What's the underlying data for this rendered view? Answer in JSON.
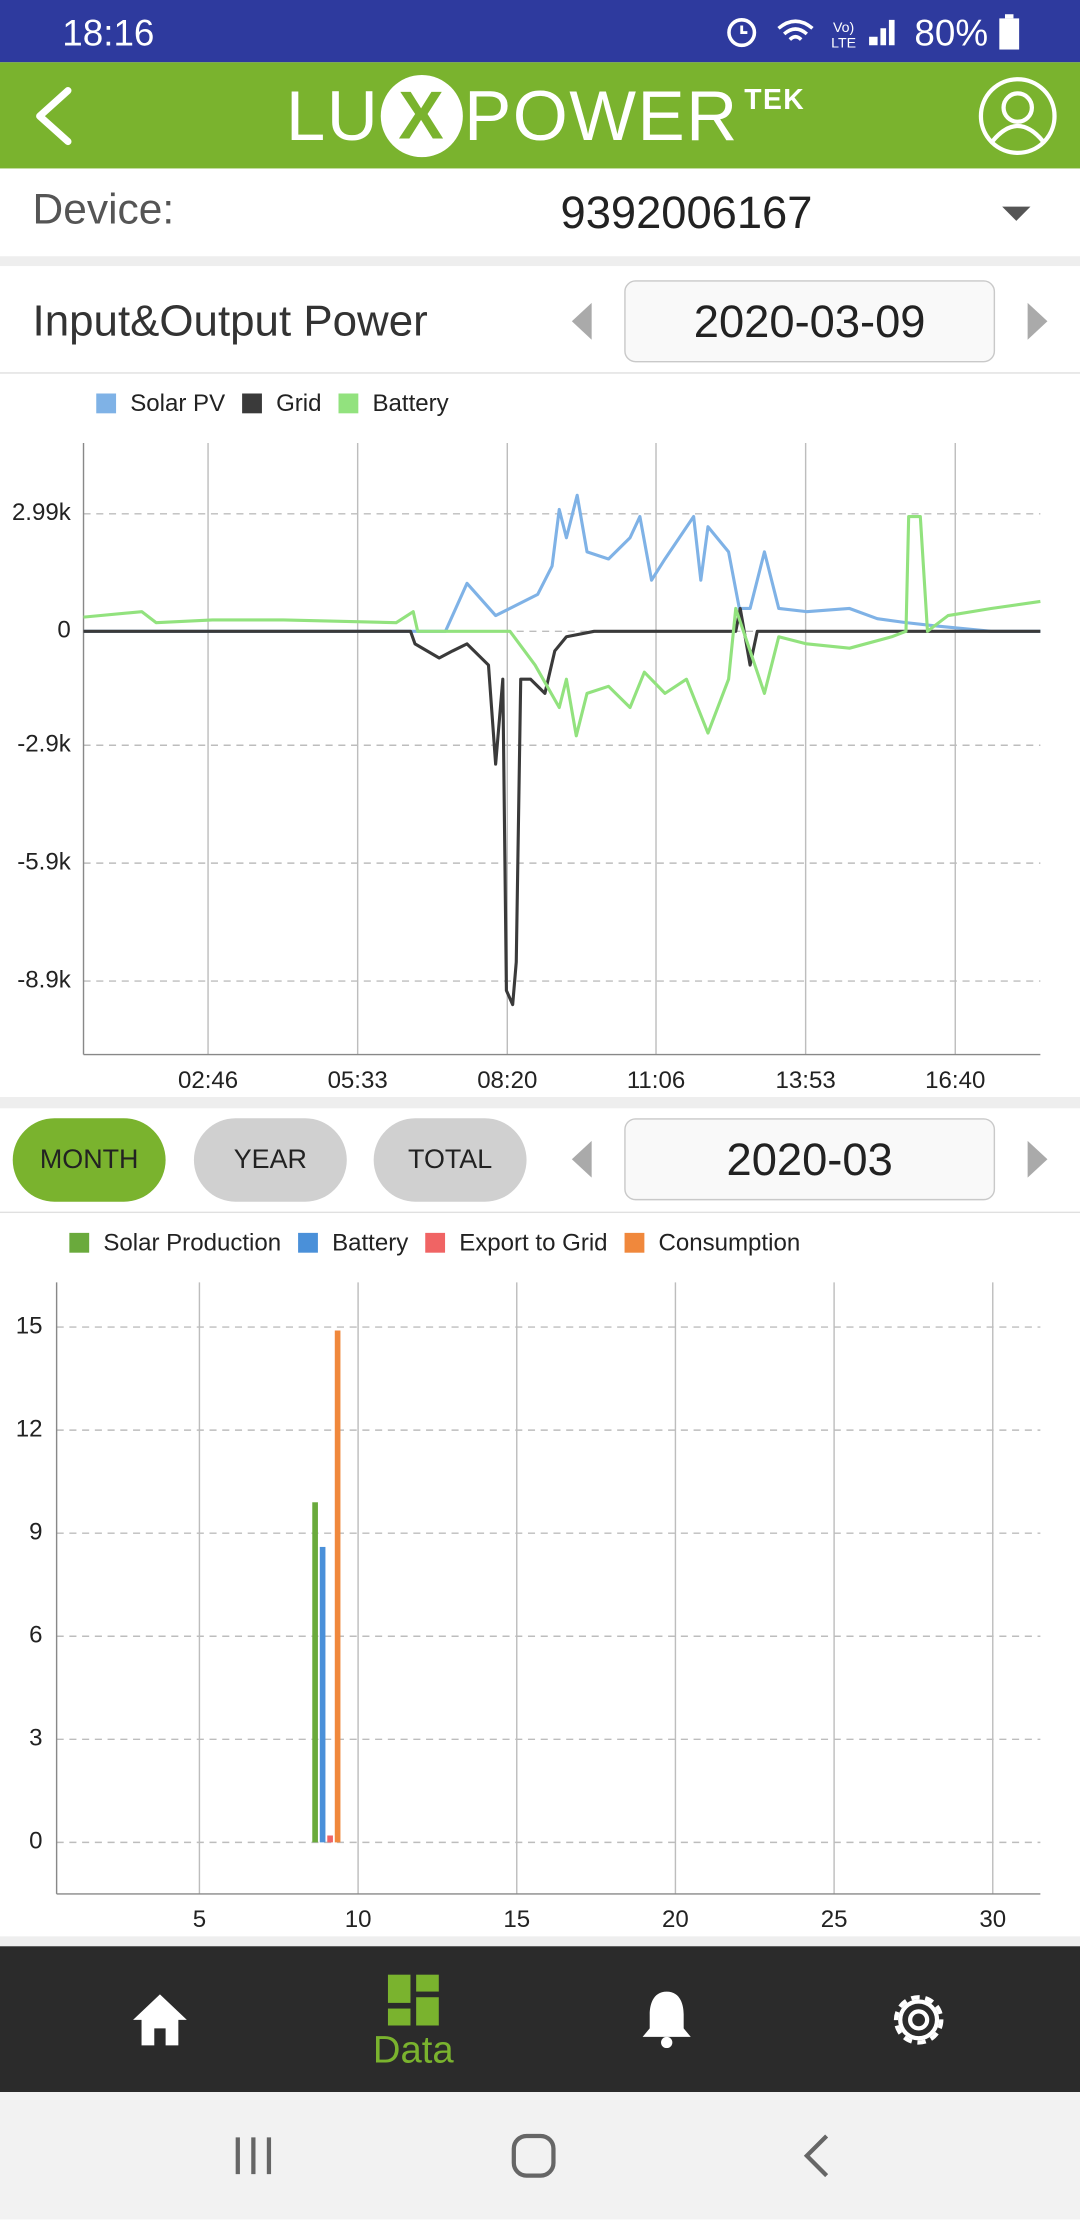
{
  "status_bar": {
    "time": "18:16",
    "battery": "80%"
  },
  "header": {
    "logo_left": "LU",
    "logo_mark": "X",
    "logo_right": "POWER",
    "logo_sup": "TEK"
  },
  "device": {
    "label": "Device:",
    "value": "9392006167"
  },
  "power_section": {
    "title": "Input&Output Power",
    "date": "2020-03-09"
  },
  "period_tabs": [
    "MONTH",
    "YEAR",
    "TOTAL"
  ],
  "period_date": "2020-03",
  "bottom_nav": {
    "active_label": "Data"
  },
  "chart_data": [
    {
      "type": "line",
      "xlim": [
        27,
        1095
      ],
      "xticks": [
        {
          "value": 166,
          "label": "02:46"
        },
        {
          "value": 333,
          "label": "05:33"
        },
        {
          "value": 500,
          "label": "08:20"
        },
        {
          "value": 666,
          "label": "11:06"
        },
        {
          "value": 833,
          "label": "13:53"
        },
        {
          "value": 1000,
          "label": "16:40"
        }
      ],
      "ylim": [
        -10770,
        4790
      ],
      "yticks": [
        {
          "value": 2990,
          "label": "2.99k"
        },
        0,
        {
          "value": -2900,
          "label": "-2.9k"
        },
        {
          "value": -5900,
          "label": "-5.9k"
        },
        {
          "value": -8900,
          "label": "-8.9k"
        }
      ],
      "grid": true,
      "series": [
        {
          "name": "Solar PV",
          "color": "#7fb2e6",
          "x": [
            27,
            431,
            455,
            487,
            534,
            550,
            558,
            566,
            578,
            589,
            613,
            637,
            648,
            661,
            676,
            692,
            708,
            716,
            724,
            747,
            759,
            771,
            787,
            803,
            834,
            882,
            913,
            945,
            977,
            1040,
            1095
          ],
          "values": [
            0,
            0,
            1220,
            400,
            940,
            1660,
            3100,
            2380,
            3460,
            2020,
            1840,
            2380,
            2920,
            1300,
            1840,
            2380,
            2920,
            1300,
            2660,
            2020,
            580,
            580,
            2020,
            580,
            500,
            580,
            320,
            220,
            140,
            0,
            0
          ]
        },
        {
          "name": "Grid",
          "color": "#3a3a3a",
          "x": [
            27,
            392,
            397,
            424,
            439,
            455,
            479,
            487,
            495,
            499,
            506,
            510,
            515,
            526,
            542,
            553,
            566,
            597,
            755,
            760,
            771,
            779,
            1095
          ],
          "values": [
            0,
            0,
            -320,
            -680,
            -500,
            -320,
            -860,
            -3380,
            -1220,
            -9140,
            -9500,
            -8420,
            -1220,
            -1220,
            -1580,
            -500,
            -140,
            0,
            0,
            580,
            -860,
            0,
            0
          ]
        },
        {
          "name": "Battery",
          "color": "#92e27e",
          "x": [
            27,
            92,
            108,
            171,
            250,
            376,
            395,
            400,
            503,
            531,
            558,
            566,
            577,
            589,
            613,
            637,
            653,
            676,
            700,
            724,
            747,
            755,
            771,
            787,
            803,
            834,
            882,
            929,
            945,
            948,
            961,
            969,
            992,
            1040,
            1095
          ],
          "values": [
            360,
            500,
            220,
            290,
            290,
            220,
            500,
            0,
            0,
            -860,
            -1940,
            -1220,
            -2660,
            -1580,
            -1400,
            -1940,
            -1040,
            -1580,
            -1220,
            -2590,
            -1220,
            580,
            -500,
            -1580,
            -140,
            -320,
            -430,
            -140,
            0,
            2920,
            2920,
            0,
            400,
            580,
            760
          ]
        }
      ]
    },
    {
      "type": "bar",
      "x": [
        9
      ],
      "xlim": [
        0.5,
        31.5
      ],
      "xticks": [
        5,
        10,
        15,
        20,
        25,
        30
      ],
      "ylim": [
        -1.5,
        16.3
      ],
      "yticks": [
        15,
        12,
        9,
        6,
        3,
        0
      ],
      "grid": true,
      "series": [
        {
          "name": "Solar Production",
          "color": "#6aaa3c",
          "values": [
            9.9
          ]
        },
        {
          "name": "Battery",
          "color": "#4a90d9",
          "values": [
            8.6
          ]
        },
        {
          "name": "Export to Grid",
          "color": "#f06464",
          "values": [
            0.2
          ]
        },
        {
          "name": "Consumption",
          "color": "#f0883c",
          "values": [
            14.9
          ]
        }
      ]
    }
  ]
}
